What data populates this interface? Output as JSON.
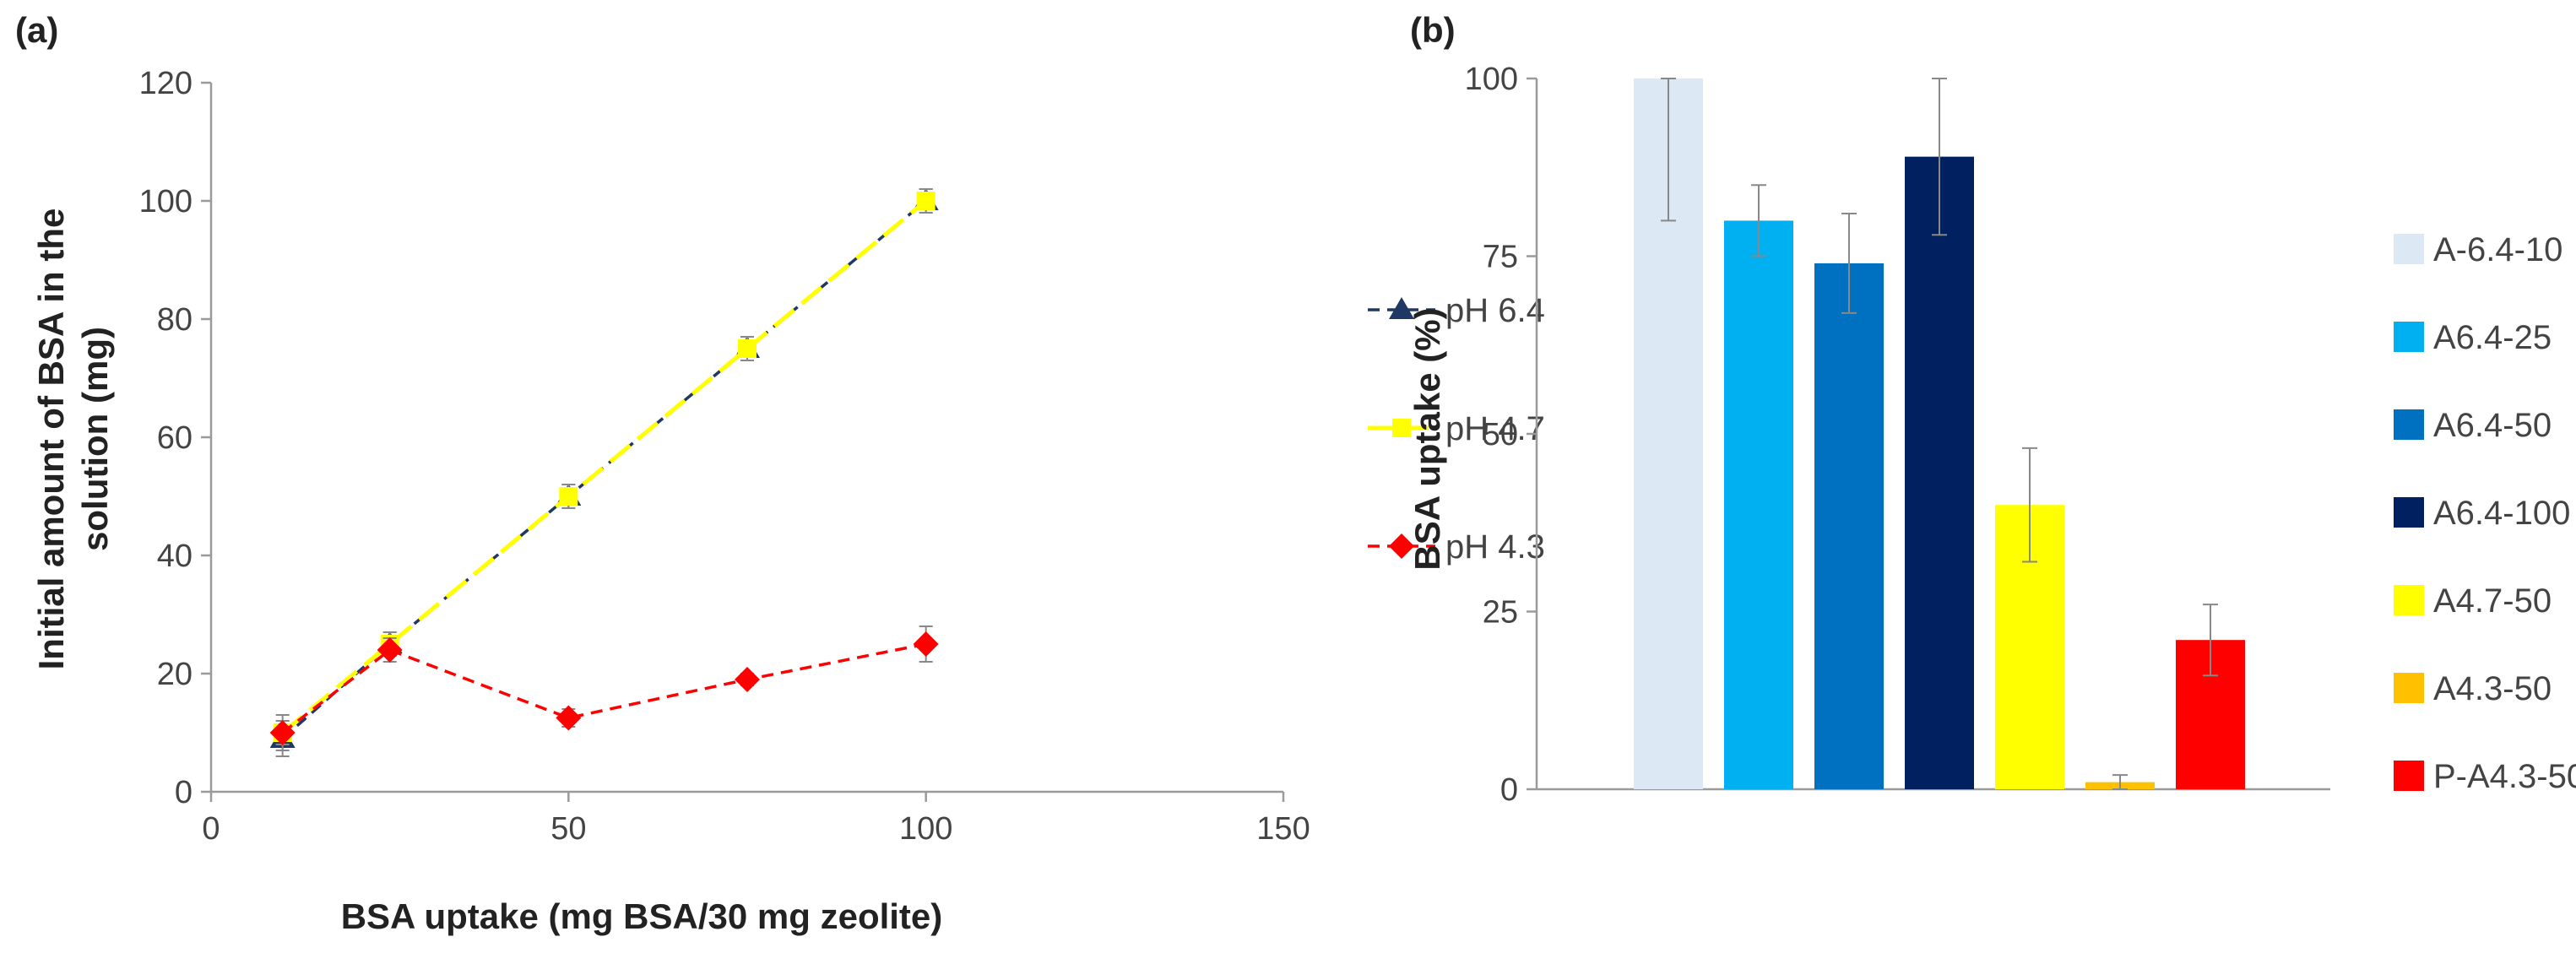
{
  "chart_data": [
    {
      "type": "line",
      "panel_label": "(a)",
      "xlabel": "BSA uptake (mg BSA/30 mg zeolite)",
      "ylabel_lines": [
        "Initial amount of BSA in the",
        "solution (mg)"
      ],
      "xlim": [
        0,
        150
      ],
      "ylim": [
        0,
        120
      ],
      "x_ticks": [
        0,
        50,
        100,
        150
      ],
      "y_ticks": [
        0,
        20,
        40,
        60,
        80,
        100,
        120
      ],
      "grid": false,
      "legend_position": "right",
      "series": [
        {
          "name": "pH 6.4",
          "color": "#1f3864",
          "marker": "triangle",
          "dash": "dash",
          "x": [
            10,
            25,
            50,
            75,
            100
          ],
          "y": [
            9,
            25,
            50,
            75,
            100
          ],
          "err": [
            3,
            2,
            2,
            2,
            2
          ]
        },
        {
          "name": "pH 4.7",
          "color": "#ffff00",
          "marker": "square",
          "dash": "longdash",
          "x": [
            10,
            25,
            50,
            75,
            100
          ],
          "y": [
            10,
            25,
            50,
            75,
            100
          ],
          "err": [
            3,
            2,
            2,
            2,
            2
          ]
        },
        {
          "name": "pH 4.3",
          "color": "#ff0000",
          "marker": "diamond",
          "dash": "dash",
          "x": [
            10,
            25,
            50,
            75,
            100
          ],
          "y": [
            10,
            24,
            12.5,
            19,
            25
          ],
          "err": [
            2,
            2,
            1.5,
            1,
            3
          ]
        }
      ]
    },
    {
      "type": "bar",
      "panel_label": "(b)",
      "ylabel": "BSA uptake (%)",
      "xlabel": "",
      "ylim": [
        0,
        100
      ],
      "y_ticks": [
        0,
        25,
        50,
        75,
        100
      ],
      "grid": false,
      "legend_position": "right",
      "categories": [
        "A-6.4-10",
        "A6.4-25",
        "A6.4-50",
        "A6.4-100",
        "A4.7-50",
        "A4.3-50",
        "P-A4.3-50"
      ],
      "values": [
        100,
        80,
        74,
        89,
        40,
        1,
        21
      ],
      "errors": [
        20,
        5,
        7,
        11,
        8,
        1,
        5
      ],
      "colors": [
        "#dde8f5",
        "#00b0f0",
        "#0070c0",
        "#002060",
        "#ffff00",
        "#ffc000",
        "#ff0000"
      ]
    }
  ]
}
